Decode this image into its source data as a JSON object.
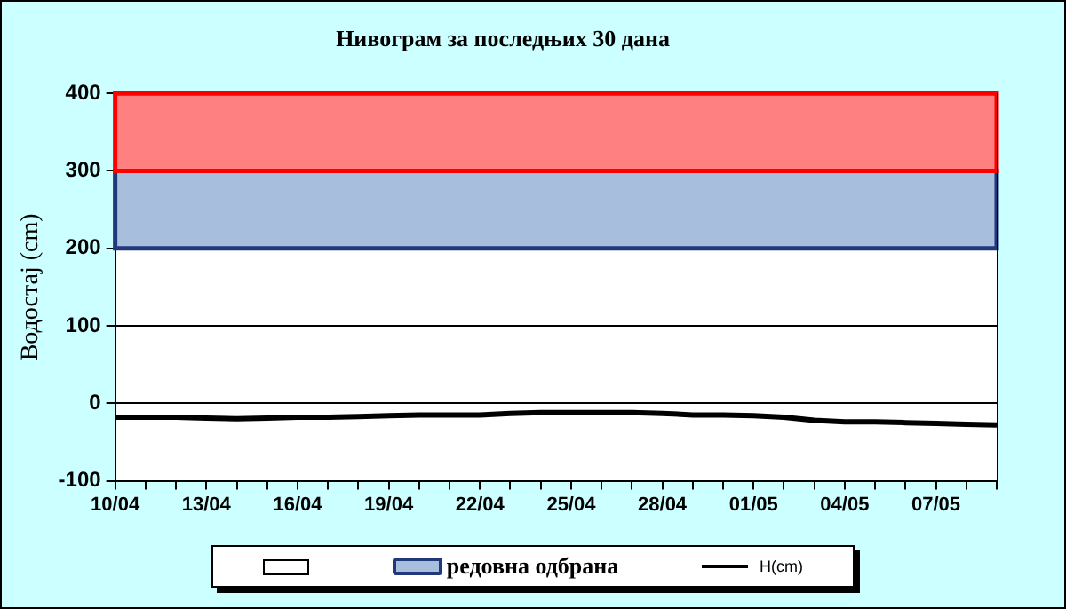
{
  "chart_data": {
    "type": "line",
    "title": "Нивограм за последњих 30 дана",
    "ylabel": "Водостај (cm)",
    "categories": [
      "10/04",
      null,
      null,
      "13/04",
      null,
      null,
      "16/04",
      null,
      null,
      "19/04",
      null,
      null,
      "22/04",
      null,
      null,
      "25/04",
      null,
      null,
      "28/04",
      null,
      null,
      "01/05",
      null,
      null,
      "04/05",
      null,
      null,
      "07/05",
      null,
      null
    ],
    "series": [
      {
        "name": "H(cm)",
        "color": "#000000",
        "values": [
          -18,
          -18,
          -18,
          -19,
          -20,
          -19,
          -18,
          -18,
          -17,
          -16,
          -15,
          -15,
          -15,
          -13,
          -12,
          -12,
          -12,
          -12,
          -13,
          -15,
          -15,
          -16,
          -18,
          -22,
          -24,
          -24,
          -25,
          -26,
          -27,
          -28
        ]
      }
    ],
    "ylim": [
      -100,
      400
    ],
    "yticks": [
      -100,
      0,
      100,
      200,
      300,
      400
    ],
    "bands": [
      {
        "axis": "y",
        "from": 200,
        "to": 300,
        "label": "редовна одбрана",
        "color": "#a7bfdd"
      },
      {
        "axis": "y",
        "from": 300,
        "to": 400,
        "color": "#ff8080"
      }
    ],
    "grid": "y",
    "legend": "bottom",
    "marker": "none",
    "line_style": "solid"
  }
}
